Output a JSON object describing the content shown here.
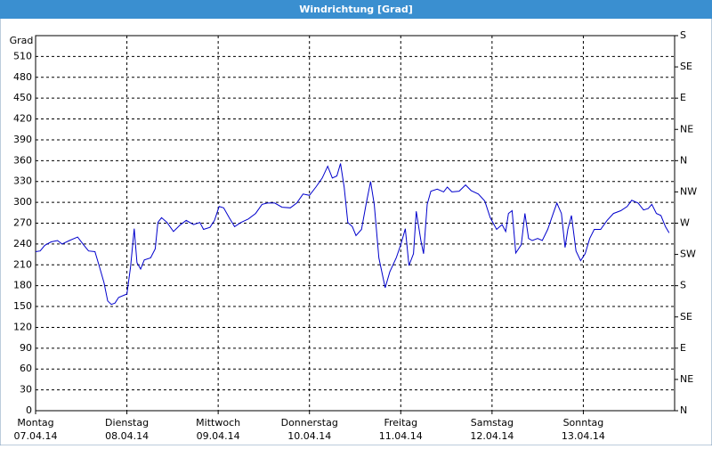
{
  "chart_data": {
    "type": "line",
    "title": "Windrichtung [Grad]",
    "y_label": "Grad",
    "grid": true,
    "ylim": [
      0,
      540
    ],
    "yticks": [
      0,
      30,
      60,
      90,
      120,
      150,
      180,
      210,
      240,
      270,
      300,
      330,
      360,
      390,
      420,
      450,
      480,
      510
    ],
    "y2lim": [
      0,
      540
    ],
    "y2ticks": [
      {
        "value": 0,
        "label": "N"
      },
      {
        "value": 45,
        "label": "NE"
      },
      {
        "value": 90,
        "label": "E"
      },
      {
        "value": 135,
        "label": "SE"
      },
      {
        "value": 180,
        "label": "S"
      },
      {
        "value": 225,
        "label": "SW"
      },
      {
        "value": 270,
        "label": "W"
      },
      {
        "value": 315,
        "label": "NW"
      },
      {
        "value": 360,
        "label": "N"
      },
      {
        "value": 405,
        "label": "NE"
      },
      {
        "value": 450,
        "label": "E"
      },
      {
        "value": 495,
        "label": "SE"
      },
      {
        "value": 540,
        "label": "S"
      }
    ],
    "xlim": [
      0,
      7
    ],
    "xticks": [
      {
        "value": 0,
        "label": "Montag",
        "date": "07.04.14"
      },
      {
        "value": 1,
        "label": "Dienstag",
        "date": "08.04.14"
      },
      {
        "value": 2,
        "label": "Mittwoch",
        "date": "09.04.14"
      },
      {
        "value": 3,
        "label": "Donnerstag",
        "date": "10.04.14"
      },
      {
        "value": 4,
        "label": "Freitag",
        "date": "11.04.14"
      },
      {
        "value": 5,
        "label": "Samstag",
        "date": "12.04.14"
      },
      {
        "value": 6,
        "label": "Sonntag",
        "date": "13.04.14"
      }
    ],
    "x": [
      0,
      0.05,
      0.1,
      0.17,
      0.24,
      0.29,
      0.37,
      0.46,
      0.53,
      0.58,
      0.65,
      0.7,
      0.75,
      0.79,
      0.83,
      0.87,
      0.91,
      1.0,
      1.04,
      1.08,
      1.11,
      1.15,
      1.19,
      1.26,
      1.31,
      1.34,
      1.38,
      1.44,
      1.51,
      1.58,
      1.65,
      1.73,
      1.8,
      1.84,
      1.91,
      1.96,
      2.01,
      2.06,
      2.12,
      2.18,
      2.25,
      2.33,
      2.41,
      2.48,
      2.54,
      2.62,
      2.7,
      2.79,
      2.86,
      2.93,
      3.0,
      3.07,
      3.14,
      3.2,
      3.25,
      3.3,
      3.34,
      3.38,
      3.42,
      3.47,
      3.51,
      3.57,
      3.62,
      3.67,
      3.71,
      3.76,
      3.83,
      3.88,
      3.95,
      4.0,
      4.05,
      4.09,
      4.14,
      4.17,
      4.22,
      4.25,
      4.29,
      4.33,
      4.4,
      4.47,
      4.51,
      4.56,
      4.64,
      4.71,
      4.77,
      4.85,
      4.92,
      4.98,
      5.05,
      5.11,
      5.15,
      5.18,
      5.22,
      5.26,
      5.32,
      5.36,
      5.4,
      5.44,
      5.5,
      5.55,
      5.61,
      5.67,
      5.71,
      5.76,
      5.8,
      5.83,
      5.87,
      5.92,
      5.97,
      6.02,
      6.07,
      6.12,
      6.19,
      6.26,
      6.33,
      6.41,
      6.48,
      6.53,
      6.6,
      6.66,
      6.71,
      6.75,
      6.8,
      6.85,
      6.9,
      6.94
    ],
    "series": [
      {
        "color": "#0000cc",
        "values": [
          229,
          230,
          238,
          243,
          245,
          240,
          245,
          250,
          238,
          230,
          229,
          207,
          184,
          158,
          153,
          155,
          163,
          168,
          207,
          262,
          213,
          204,
          217,
          220,
          233,
          271,
          278,
          271,
          258,
          267,
          274,
          268,
          271,
          261,
          264,
          274,
          294,
          292,
          278,
          265,
          271,
          276,
          284,
          297,
          299,
          299,
          293,
          292,
          299,
          312,
          310,
          322,
          335,
          352,
          335,
          338,
          356,
          322,
          271,
          265,
          252,
          261,
          297,
          330,
          297,
          220,
          177,
          200,
          220,
          239,
          262,
          209,
          226,
          287,
          245,
          226,
          297,
          316,
          319,
          315,
          322,
          315,
          316,
          325,
          317,
          312,
          302,
          278,
          261,
          268,
          258,
          284,
          288,
          227,
          239,
          284,
          248,
          245,
          248,
          245,
          261,
          284,
          299,
          284,
          235,
          261,
          281,
          230,
          216,
          226,
          248,
          261,
          261,
          274,
          284,
          288,
          294,
          303,
          299,
          289,
          291,
          297,
          284,
          281,
          265,
          256
        ]
      }
    ]
  }
}
